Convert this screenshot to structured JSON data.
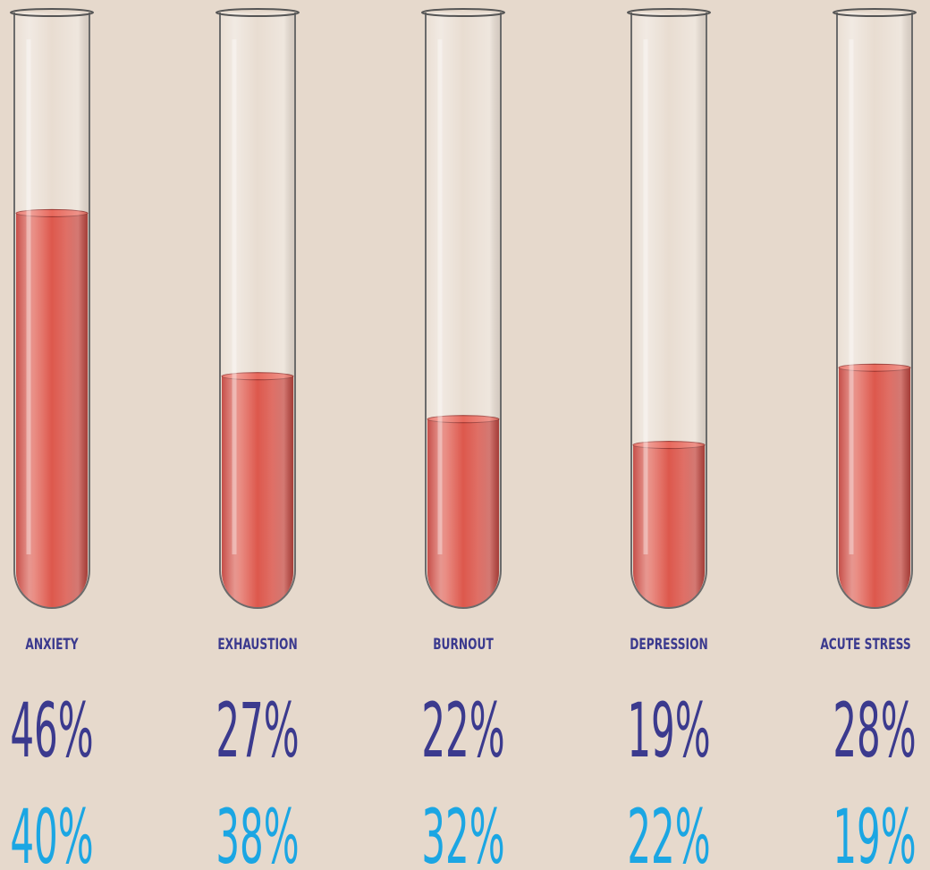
{
  "chart_data": {
    "type": "bar",
    "categories": [
      "ANXIETY",
      "EXHAUSTION",
      "BURNOUT",
      "DEPRESSION",
      "ACUTE STRESS"
    ],
    "series": [
      {
        "color": "#3b3a8e",
        "values": [
          46,
          27,
          22,
          19,
          28
        ],
        "value_labels": [
          "46%",
          "27%",
          "22%",
          "19%",
          "28%"
        ]
      },
      {
        "color": "#1ba6e3",
        "values": [
          40,
          38,
          32,
          22,
          19
        ],
        "value_labels": [
          "40%",
          "38%",
          "32%",
          "22%",
          "19%"
        ]
      }
    ]
  }
}
